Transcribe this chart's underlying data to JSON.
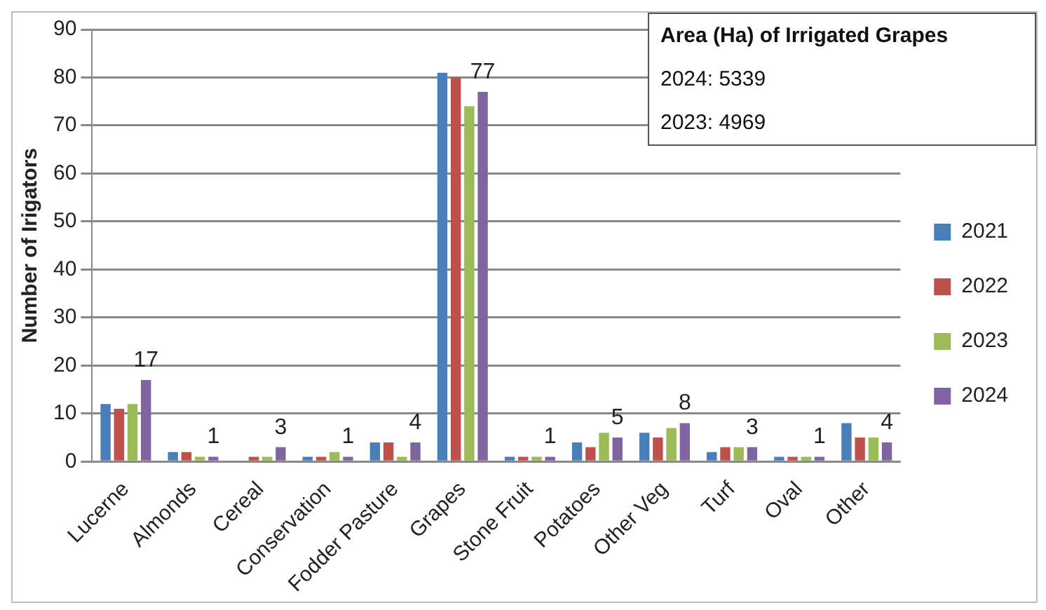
{
  "chart_data": {
    "type": "bar",
    "ylabel": "Number of Irigators",
    "categories": [
      "Lucerne",
      "Almonds",
      "Cereal",
      "Conservation",
      "Fodder Pasture",
      "Grapes",
      "Stone Fruit",
      "Potatoes",
      "Other Veg",
      "Turf",
      "Oval",
      "Other"
    ],
    "series": [
      {
        "name": "2021",
        "color": "#4a7ebb",
        "values": [
          12,
          2,
          0,
          1,
          4,
          81,
          1,
          4,
          6,
          2,
          1,
          8
        ]
      },
      {
        "name": "2022",
        "color": "#c0504d",
        "values": [
          11,
          2,
          1,
          1,
          4,
          80,
          1,
          3,
          5,
          3,
          1,
          5
        ]
      },
      {
        "name": "2023",
        "color": "#9bbb59",
        "values": [
          12,
          1,
          1,
          2,
          1,
          74,
          1,
          6,
          7,
          3,
          1,
          5
        ]
      },
      {
        "name": "2024",
        "color": "#8064a2",
        "values": [
          17,
          1,
          3,
          1,
          4,
          77,
          1,
          5,
          8,
          3,
          1,
          4
        ],
        "value_labels": [
          "17",
          "1",
          "3",
          "1",
          "4",
          "77",
          "1",
          "5",
          "8",
          "3",
          "1",
          "4"
        ]
      }
    ],
    "ylim": [
      0,
      90
    ],
    "yticks": [
      0,
      10,
      20,
      30,
      40,
      50,
      60,
      70,
      80,
      90
    ],
    "grid": "y",
    "legend": "right",
    "annotations": [
      "Area (Ha) of Irrigated Grapes",
      "2024: 5339",
      "2023: 4969"
    ]
  }
}
